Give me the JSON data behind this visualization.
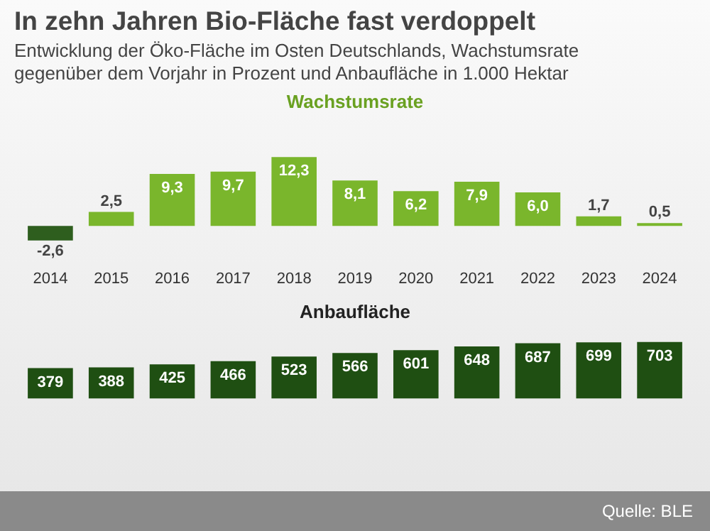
{
  "chart_data": [
    {
      "type": "other",
      "title": "In zehn Jahren Bio-Fläche fast verdoppelt",
      "subtitle": "Entwicklung der Öko-Fläche im Osten Deutschlands, Wachstumsrate gegenüber dem Vorjahr in Prozent und Anbaufläche in 1.000 Hektar",
      "annotations": [
        "Quelle: BLE"
      ]
    },
    {
      "type": "bar",
      "title": "Wachstumsrate",
      "categories": [
        "2014",
        "2015",
        "2016",
        "2017",
        "2018",
        "2019",
        "2020",
        "2021",
        "2022",
        "2023",
        "2024"
      ],
      "values": [
        -2.6,
        2.5,
        9.3,
        9.7,
        12.3,
        8.1,
        6.2,
        7.9,
        6.0,
        1.7,
        0.5
      ],
      "colors": [
        "#2e5e1e",
        "#7ab62c",
        "#7ab62c",
        "#7ab62c",
        "#7ab62c",
        "#7ab62c",
        "#7ab62c",
        "#7ab62c",
        "#7ab62c",
        "#7ab62c",
        "#7ab62c"
      ],
      "value_labels": [
        "-2,6",
        "2,5",
        "9,3",
        "9,7",
        "12,3",
        "8,1",
        "6,2",
        "7,9",
        "6,0",
        "1,7",
        "0,5"
      ]
    },
    {
      "type": "bar",
      "title": "Anbaufläche",
      "categories": [
        null,
        null,
        null,
        null,
        null,
        null,
        null,
        null,
        null,
        null,
        null
      ],
      "values": [
        379,
        388,
        425,
        466,
        523,
        566,
        601,
        648,
        687,
        699,
        703
      ],
      "color": "#1f4f12",
      "data_labels": true
    }
  ]
}
